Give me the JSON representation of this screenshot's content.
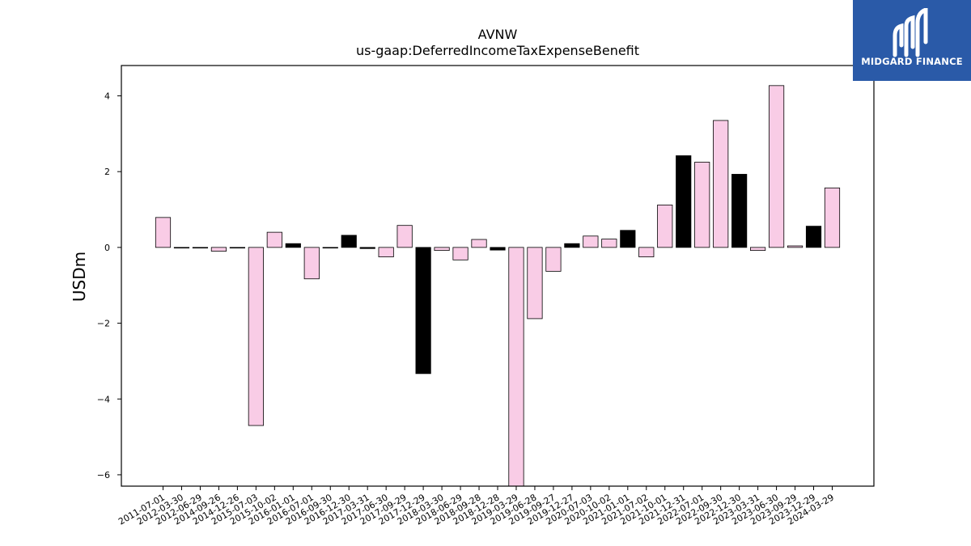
{
  "logo": {
    "text": "MIDGARD FINANCE"
  },
  "colors": {
    "positive_bar": "#f9cce6",
    "negative_bar": "#000000",
    "bar_edge": "#000000",
    "logo_bg": "#2a5aa8"
  },
  "chart_data": {
    "type": "bar",
    "title": "AVNW",
    "subtitle": "us-gaap:DeferredIncomeTaxExpenseBenefit",
    "xlabel": "",
    "ylabel": "USDm",
    "ylim": [
      -6.3,
      4.8
    ],
    "yticks": [
      -6,
      -4,
      -2,
      0,
      2,
      4
    ],
    "ytick_labels": [
      "−6",
      "−4",
      "−2",
      "0",
      "2",
      "4"
    ],
    "grid": false,
    "categories": [
      "2011-07-01",
      "2012-03-30",
      "2012-06-29",
      "2014-09-26",
      "2014-12-26",
      "2015-07-03",
      "2015-10-02",
      "2016-01-01",
      "2016-07-01",
      "2016-09-30",
      "2016-12-30",
      "2017-03-31",
      "2017-06-30",
      "2017-09-29",
      "2017-12-29",
      "2018-03-30",
      "2018-06-29",
      "2018-09-28",
      "2018-12-28",
      "2019-03-29",
      "2019-06-28",
      "2019-09-27",
      "2019-12-27",
      "2020-07-03",
      "2020-10-02",
      "2021-01-01",
      "2021-07-02",
      "2021-10-01",
      "2021-12-31",
      "2022-07-01",
      "2022-09-30",
      "2022-12-30",
      "2023-03-31",
      "2023-06-30",
      "2023-09-29",
      "2023-12-29",
      "2024-03-29"
    ],
    "values": [
      0.79,
      0.0,
      0.0,
      -0.1,
      0.0,
      -4.7,
      0.4,
      0.1,
      -0.83,
      0.0,
      0.32,
      -0.03,
      -0.25,
      0.58,
      -3.33,
      -0.08,
      -0.33,
      0.21,
      -0.07,
      -6.3,
      -1.88,
      -0.63,
      0.1,
      0.3,
      0.22,
      0.45,
      -0.25,
      1.12,
      2.42,
      2.25,
      3.35,
      1.93,
      -0.08,
      4.27,
      0.04,
      0.56,
      1.57
    ],
    "bar_colors": [
      "pink",
      "black",
      "black",
      "pink",
      "black",
      "pink",
      "pink",
      "black",
      "pink",
      "black",
      "black",
      "black",
      "pink",
      "pink",
      "black",
      "pink",
      "pink",
      "pink",
      "black",
      "pink",
      "pink",
      "pink",
      "black",
      "pink",
      "pink",
      "black",
      "pink",
      "pink",
      "black",
      "pink",
      "pink",
      "black",
      "pink",
      "pink",
      "pink",
      "black",
      "pink"
    ]
  }
}
